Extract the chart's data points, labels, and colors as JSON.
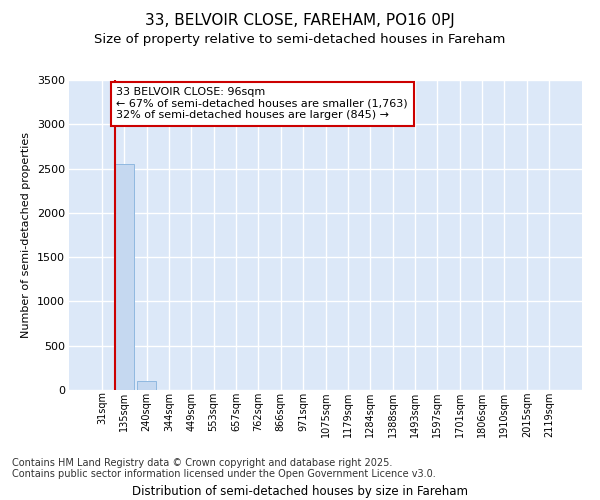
{
  "title_line1": "33, BELVOIR CLOSE, FAREHAM, PO16 0PJ",
  "title_line2": "Size of property relative to semi-detached houses in Fareham",
  "xlabel": "Distribution of semi-detached houses by size in Fareham",
  "ylabel": "Number of semi-detached properties",
  "categories": [
    "31sqm",
    "135sqm",
    "240sqm",
    "344sqm",
    "449sqm",
    "553sqm",
    "657sqm",
    "762sqm",
    "866sqm",
    "971sqm",
    "1075sqm",
    "1179sqm",
    "1284sqm",
    "1388sqm",
    "1493sqm",
    "1597sqm",
    "1701sqm",
    "1806sqm",
    "1910sqm",
    "2015sqm",
    "2119sqm"
  ],
  "values": [
    0,
    2550,
    105,
    0,
    0,
    0,
    0,
    0,
    0,
    0,
    0,
    0,
    0,
    0,
    0,
    0,
    0,
    0,
    0,
    0,
    0
  ],
  "bar_color": "#c5d8f0",
  "bar_edge_color": "#8fb8e0",
  "annotation_box_text": "33 BELVOIR CLOSE: 96sqm\n← 67% of semi-detached houses are smaller (1,763)\n32% of semi-detached houses are larger (845) →",
  "property_line_color": "#cc0000",
  "property_bar_index": 1,
  "ylim": [
    0,
    3500
  ],
  "yticks": [
    0,
    500,
    1000,
    1500,
    2000,
    2500,
    3000,
    3500
  ],
  "bg_color": "#ffffff",
  "plot_bg_color": "#dce8f8",
  "grid_color": "#ffffff",
  "footer_text": "Contains HM Land Registry data © Crown copyright and database right 2025.\nContains public sector information licensed under the Open Government Licence v3.0.",
  "title_fontsize": 11,
  "subtitle_fontsize": 9.5,
  "annotation_fontsize": 8,
  "footer_fontsize": 7,
  "ylabel_fontsize": 8,
  "xlabel_fontsize": 8.5
}
